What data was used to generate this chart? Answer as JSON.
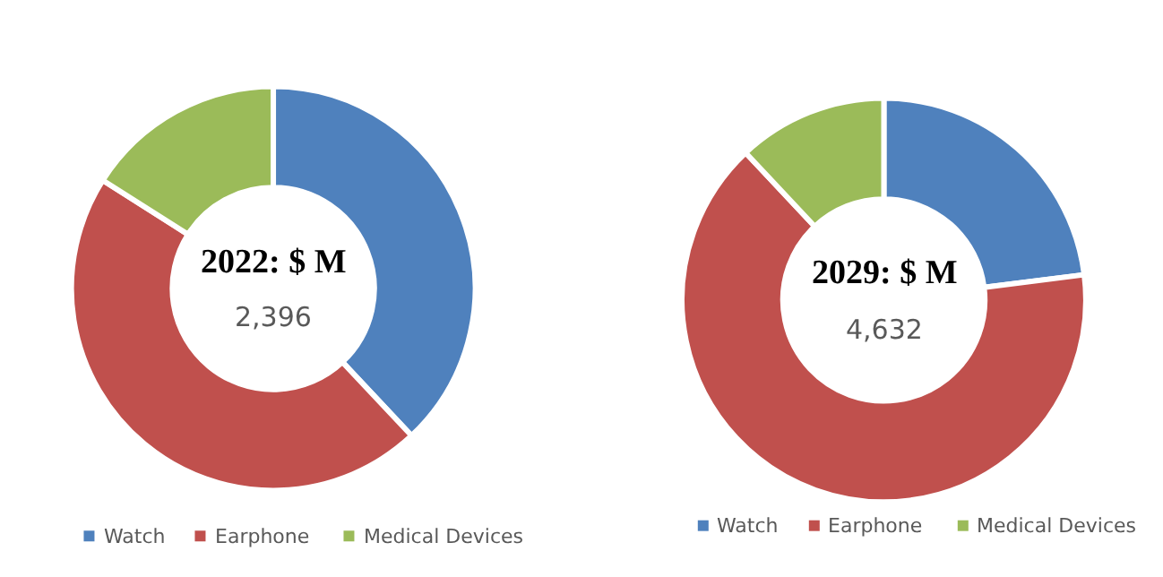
{
  "chart_data": [
    {
      "type": "donut",
      "title": "2022: $ M",
      "annotations": [
        "2,396"
      ],
      "categories": [
        "Watch",
        "Earphone",
        "Medical Devices"
      ],
      "values": [
        38,
        46,
        16
      ],
      "colors": [
        "#4f81bd",
        "#c0504d",
        "#9bbb59"
      ],
      "legend": "bottom"
    },
    {
      "type": "donut",
      "title": "2029: $ M",
      "annotations": [
        "4,632"
      ],
      "categories": [
        "Watch",
        "Earphone",
        "Medical Devices"
      ],
      "values": [
        23,
        65,
        12
      ],
      "colors": [
        "#4f81bd",
        "#c0504d",
        "#9bbb59"
      ],
      "legend": "bottom"
    }
  ]
}
